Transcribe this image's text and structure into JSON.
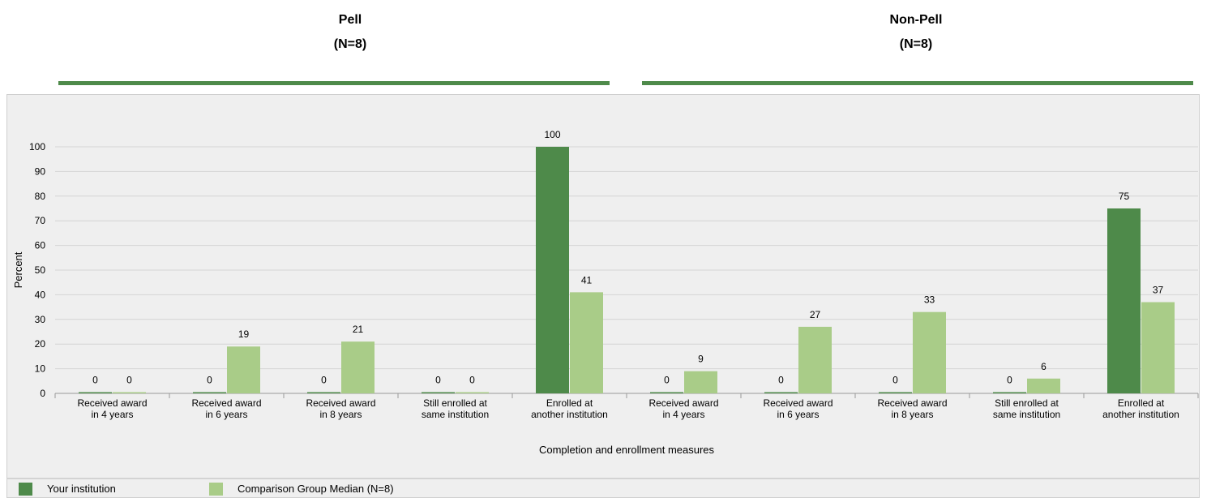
{
  "groups": [
    {
      "title": "Pell",
      "subtitle": "(N=8)"
    },
    {
      "title": "Non-Pell",
      "subtitle": "(N=8)"
    }
  ],
  "colors": {
    "your_institution": "#4e8a4a",
    "comparison": "#a9cc88",
    "rule": "#4e8a4a",
    "grid": "#d4d4d4"
  },
  "legend": {
    "your_institution": "Your institution",
    "comparison": "Comparison Group Median (N=8)"
  },
  "chart_data": {
    "type": "bar",
    "xlabel": "Completion and enrollment measures",
    "ylabel": "Percent",
    "ylim": [
      0,
      100
    ],
    "yticks": [
      0,
      10,
      20,
      30,
      40,
      50,
      60,
      70,
      80,
      90,
      100
    ],
    "grid": true,
    "legend_position": "bottom",
    "categories": [
      [
        "Received award",
        "in 4 years"
      ],
      [
        "Received award",
        "in 6 years"
      ],
      [
        "Received award",
        "in 8 years"
      ],
      [
        "Still enrolled at",
        "same institution"
      ],
      [
        "Enrolled at",
        "another institution"
      ],
      [
        "Received award",
        "in 4 years"
      ],
      [
        "Received award",
        "in 6 years"
      ],
      [
        "Received award",
        "in 8 years"
      ],
      [
        "Still enrolled at",
        "same institution"
      ],
      [
        "Enrolled at",
        "another institution"
      ]
    ],
    "series": [
      {
        "name": "Your institution",
        "values": [
          0,
          0,
          0,
          0,
          100,
          0,
          0,
          0,
          0,
          75
        ]
      },
      {
        "name": "Comparison Group Median (N=8)",
        "values": [
          0,
          19,
          21,
          0,
          41,
          9,
          27,
          33,
          6,
          37
        ]
      }
    ]
  }
}
